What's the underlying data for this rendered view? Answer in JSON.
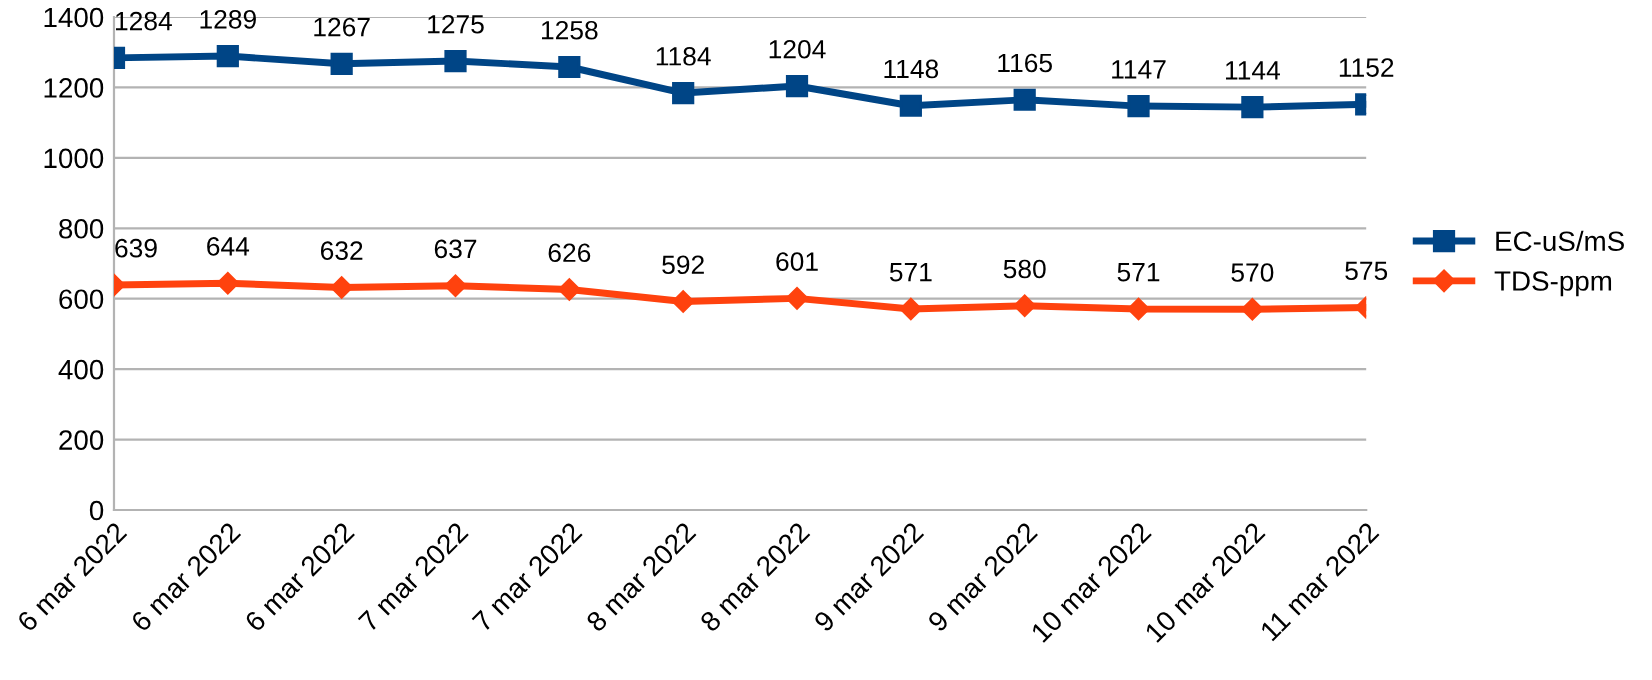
{
  "chart_data": {
    "type": "line",
    "categories": [
      "6 mar 2022",
      "6 mar 2022",
      "6 mar 2022",
      "7 mar 2022",
      "7 mar 2022",
      "8 mar 2022",
      "8 mar 2022",
      "9 mar 2022",
      "9 mar 2022",
      "10 mar 2022",
      "10 mar 2022",
      "11 mar 2022"
    ],
    "series": [
      {
        "name": "EC-uS/mS",
        "color": "#004586",
        "marker": "square",
        "values": [
          1284,
          1289,
          1267,
          1275,
          1258,
          1184,
          1204,
          1148,
          1165,
          1147,
          1144,
          1152
        ]
      },
      {
        "name": "TDS-ppm",
        "color": "#ff420e",
        "marker": "diamond",
        "values": [
          639,
          644,
          632,
          637,
          626,
          592,
          601,
          571,
          580,
          571,
          570,
          575
        ]
      }
    ],
    "ylim": [
      0,
      1400
    ],
    "yticks": [
      0,
      200,
      400,
      600,
      800,
      1000,
      1200,
      1400
    ],
    "grid": "y",
    "legend": "right",
    "data_labels": true,
    "line_style": "solid"
  }
}
